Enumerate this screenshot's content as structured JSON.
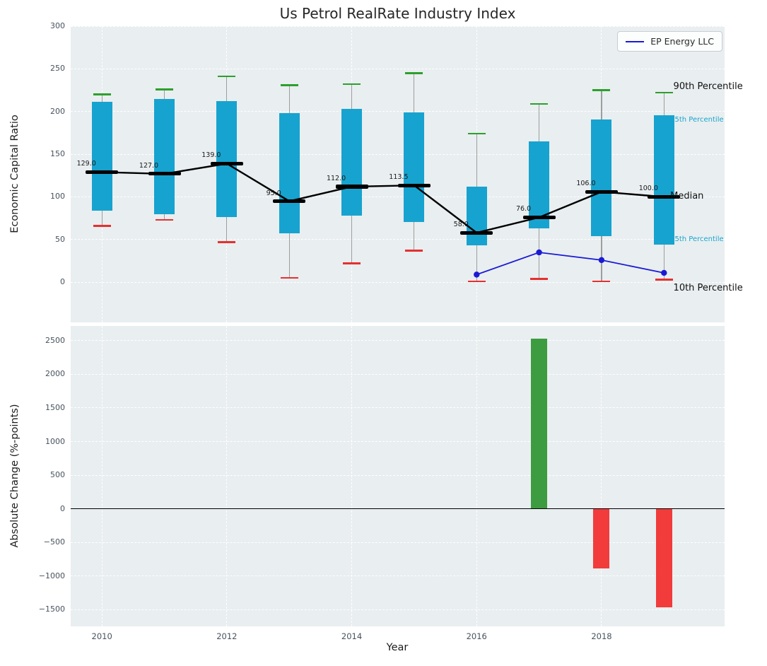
{
  "title": "Us Petrol RealRate Industry Index",
  "legend_label": "EP Energy LLC",
  "chart_data": [
    {
      "type": "box-median-line",
      "title": "Us Petrol RealRate Industry Index",
      "ylabel": "Economic Capital Ratio",
      "ylim": [
        -47,
        300
      ],
      "yticks": [
        0,
        50,
        100,
        150,
        200,
        250,
        300
      ],
      "xlim": [
        2009.5,
        2019.97
      ],
      "xticks": [
        2010,
        2012,
        2014,
        2016,
        2018
      ],
      "grid": true,
      "legend_position": "upper right",
      "years": [
        2010,
        2011,
        2012,
        2013,
        2014,
        2015,
        2016,
        2017,
        2018,
        2019
      ],
      "median": [
        129.0,
        127.0,
        139.0,
        95.0,
        112.0,
        113.5,
        58.0,
        76.0,
        106.0,
        100.0
      ],
      "median_labels": [
        "129.0",
        "127.0",
        "139.0",
        "95.0",
        "112.0",
        "113.5",
        "58.0",
        "76.0",
        "106.0",
        "100.0"
      ],
      "p25": [
        84,
        80,
        76,
        57,
        78,
        71,
        43,
        63,
        54,
        44
      ],
      "p75": [
        211,
        215,
        212,
        198,
        203,
        199,
        112,
        165,
        191,
        196
      ],
      "p10": [
        66,
        73,
        47,
        5,
        22,
        37,
        1,
        4,
        1,
        3
      ],
      "p90": [
        220,
        226,
        241,
        231,
        232,
        245,
        174,
        209,
        225,
        222
      ],
      "series": [
        {
          "name": "EP Energy LLC",
          "x": [
            2016,
            2017,
            2018,
            2019
          ],
          "y": [
            9,
            35,
            26,
            11
          ],
          "color": "#1a1ad6"
        }
      ],
      "annotations": [
        {
          "text": "90th Percentile",
          "x": 2019.15,
          "y": 228,
          "color": "#111111",
          "size": 13
        },
        {
          "text": "75th Percentile",
          "x": 2019.1,
          "y": 189,
          "color": "#18a5cc",
          "size": 10
        },
        {
          "text": "Median",
          "x": 2019.1,
          "y": 99,
          "color": "#111111",
          "size": 13
        },
        {
          "text": "25th Percentile",
          "x": 2019.1,
          "y": 49,
          "color": "#18a5cc",
          "size": 10
        },
        {
          "text": "10th Percentile",
          "x": 2019.15,
          "y": -8,
          "color": "#111111",
          "size": 13
        }
      ],
      "colors": {
        "box": "#17a3cf",
        "median": "#000000",
        "cap_high": "#2ca02c",
        "cap_low": "#e53030",
        "whisker": "#9e9e9e"
      }
    },
    {
      "type": "bar",
      "ylabel": "Absolute Change (%-points)",
      "xlabel": "Year",
      "ylim": [
        -1750,
        2720
      ],
      "yticks": [
        -1500,
        -1000,
        -500,
        0,
        500,
        1000,
        1500,
        2000,
        2500
      ],
      "zero_line": true,
      "bars": [
        {
          "x": 2017,
          "value": 2530,
          "color": "#3d9c40"
        },
        {
          "x": 2018,
          "value": -890,
          "color": "#f23b3b"
        },
        {
          "x": 2019,
          "value": -1470,
          "color": "#f23b3b"
        }
      ]
    }
  ]
}
